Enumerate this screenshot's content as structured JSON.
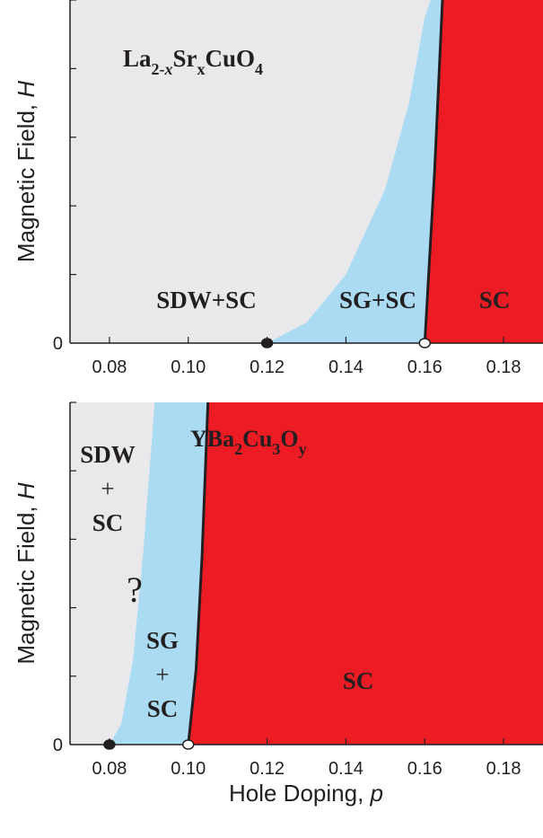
{
  "chart_data": [
    {
      "type": "area",
      "title": "",
      "xlabel": "",
      "ylabel_parts": [
        "Magnetic Field, ",
        "H"
      ],
      "xlim": [
        0.07,
        0.19
      ],
      "x_ticks": [
        "0.08",
        "0.10",
        "0.12",
        "0.14",
        "0.16",
        "0.18"
      ],
      "y_tick_label": "0",
      "colors": {
        "sdw_sc": "#e9e8ea",
        "sg_sc": "#aadbf3",
        "sc": "#ed1c24",
        "boundary": "#231f20"
      },
      "compound_parts": [
        {
          "t": "La",
          "role": "base"
        },
        {
          "t": "2-",
          "role": "sub"
        },
        {
          "t": "x",
          "role": "subi"
        },
        {
          "t": "Sr",
          "role": "base"
        },
        {
          "t": "x",
          "role": "sub"
        },
        {
          "t": "CuO",
          "role": "base"
        },
        {
          "t": "4",
          "role": "sub"
        }
      ],
      "regions": [
        {
          "label": "SDW+SC",
          "x_range": [
            0.07,
            0.12
          ]
        },
        {
          "label": "SG+SC",
          "x_range": [
            0.12,
            0.161
          ]
        },
        {
          "label": "SC",
          "x_range": [
            0.161,
            0.19
          ]
        }
      ],
      "sdw_boundary_start": 0.12,
      "sc_boundary": [
        [
          0.16,
          0
        ],
        [
          0.161,
          0.2
        ],
        [
          0.1625,
          0.5
        ],
        [
          0.1645,
          1.0
        ]
      ],
      "sg_boundary": [
        [
          0.12,
          0
        ],
        [
          0.13,
          0.06
        ],
        [
          0.14,
          0.2
        ],
        [
          0.15,
          0.45
        ],
        [
          0.156,
          0.7
        ],
        [
          0.16,
          0.95
        ],
        [
          0.1615,
          1.0
        ]
      ],
      "markers": [
        {
          "x": 0.12,
          "type": "filled"
        },
        {
          "x": 0.16,
          "type": "open"
        }
      ]
    },
    {
      "type": "area",
      "title": "",
      "xlabel_parts": [
        "Hole Doping, ",
        "p"
      ],
      "ylabel_parts": [
        "Magnetic Field, ",
        "H"
      ],
      "xlim": [
        0.07,
        0.19
      ],
      "x_ticks": [
        "0.08",
        "0.10",
        "0.12",
        "0.14",
        "0.16",
        "0.18"
      ],
      "y_tick_label": "0",
      "colors": {
        "sdw_sc": "#e9e8ea",
        "sg_sc": "#aadbf3",
        "sc": "#ed1c24",
        "boundary": "#231f20"
      },
      "compound_parts": [
        {
          "t": "YBa",
          "role": "base"
        },
        {
          "t": "2",
          "role": "sub"
        },
        {
          "t": "Cu",
          "role": "base"
        },
        {
          "t": "3",
          "role": "sub"
        },
        {
          "t": "O",
          "role": "base"
        },
        {
          "t": "y",
          "role": "sub"
        }
      ],
      "regions": [
        {
          "label_lines": [
            "SDW",
            "+",
            "SC"
          ],
          "x_range": [
            0.07,
            0.087
          ]
        },
        {
          "label_lines": [
            "SG",
            "+",
            "SC"
          ],
          "x_range": [
            0.087,
            0.104
          ]
        },
        {
          "label": "SC",
          "x_range": [
            0.104,
            0.19
          ]
        }
      ],
      "question_mark": "?",
      "sc_boundary": [
        [
          0.1,
          0
        ],
        [
          0.102,
          0.22
        ],
        [
          0.1035,
          0.55
        ],
        [
          0.105,
          1.0
        ]
      ],
      "sg_boundary": [
        [
          0.08,
          0
        ],
        [
          0.083,
          0.06
        ],
        [
          0.086,
          0.25
        ],
        [
          0.0885,
          0.55
        ],
        [
          0.0905,
          0.85
        ],
        [
          0.0915,
          1.0
        ]
      ],
      "markers": [
        {
          "x": 0.08,
          "type": "filled"
        },
        {
          "x": 0.1,
          "type": "open"
        }
      ]
    }
  ]
}
